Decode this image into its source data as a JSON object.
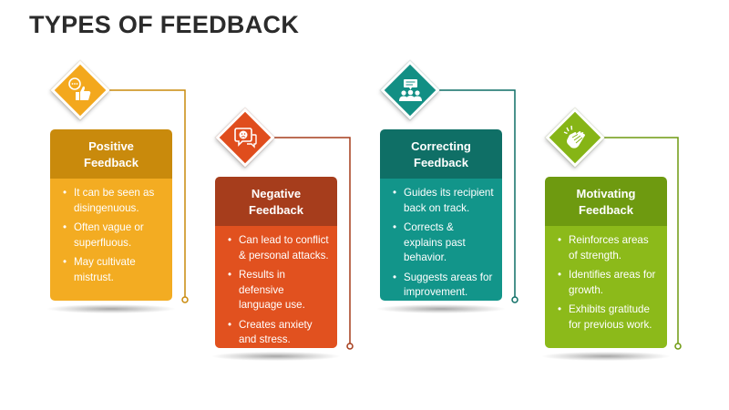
{
  "title": "TYPES OF FEEDBACK",
  "colors": {
    "positive_head": "#c98a0c",
    "positive_body": "#f3ac22",
    "positive_diamond": "#f3a81d",
    "negative_head": "#a63d1c",
    "negative_body": "#e1511f",
    "negative_diamond": "#e04d1d",
    "correcting_head": "#0f6f66",
    "correcting_body": "#12958a",
    "correcting_diamond": "#128f84",
    "motivating_head": "#6e9a10",
    "motivating_body": "#8cba1a",
    "motivating_diamond": "#86b516"
  },
  "cards": [
    {
      "id": "positive",
      "heading_line1": "Positive",
      "heading_line2": "Feedback",
      "icon": "thumbs-up-speech-icon",
      "bullets": [
        "It can be seen as disingenuous.",
        "Often vague or superfluous.",
        "May cultivate mistrust."
      ]
    },
    {
      "id": "negative",
      "heading_line1": "Negative",
      "heading_line2": "Feedback",
      "icon": "sad-face-speech-icon",
      "bullets": [
        "Can lead to conflict & personal attacks.",
        "Results in defensive language use.",
        "Creates anxiety and stress."
      ]
    },
    {
      "id": "correcting",
      "heading_line1": "Correcting",
      "heading_line2": "Feedback",
      "icon": "group-discussion-icon",
      "bullets": [
        "Guides its recipient back on track.",
        "Corrects & explains past behavior.",
        "Suggests areas for improvement."
      ]
    },
    {
      "id": "motivating",
      "heading_line1": "Motivating",
      "heading_line2": "Feedback",
      "icon": "clapping-hands-icon",
      "bullets": [
        "Reinforces areas of strength.",
        "Identifies areas for growth.",
        "Exhibits gratitude for previous work."
      ]
    }
  ]
}
